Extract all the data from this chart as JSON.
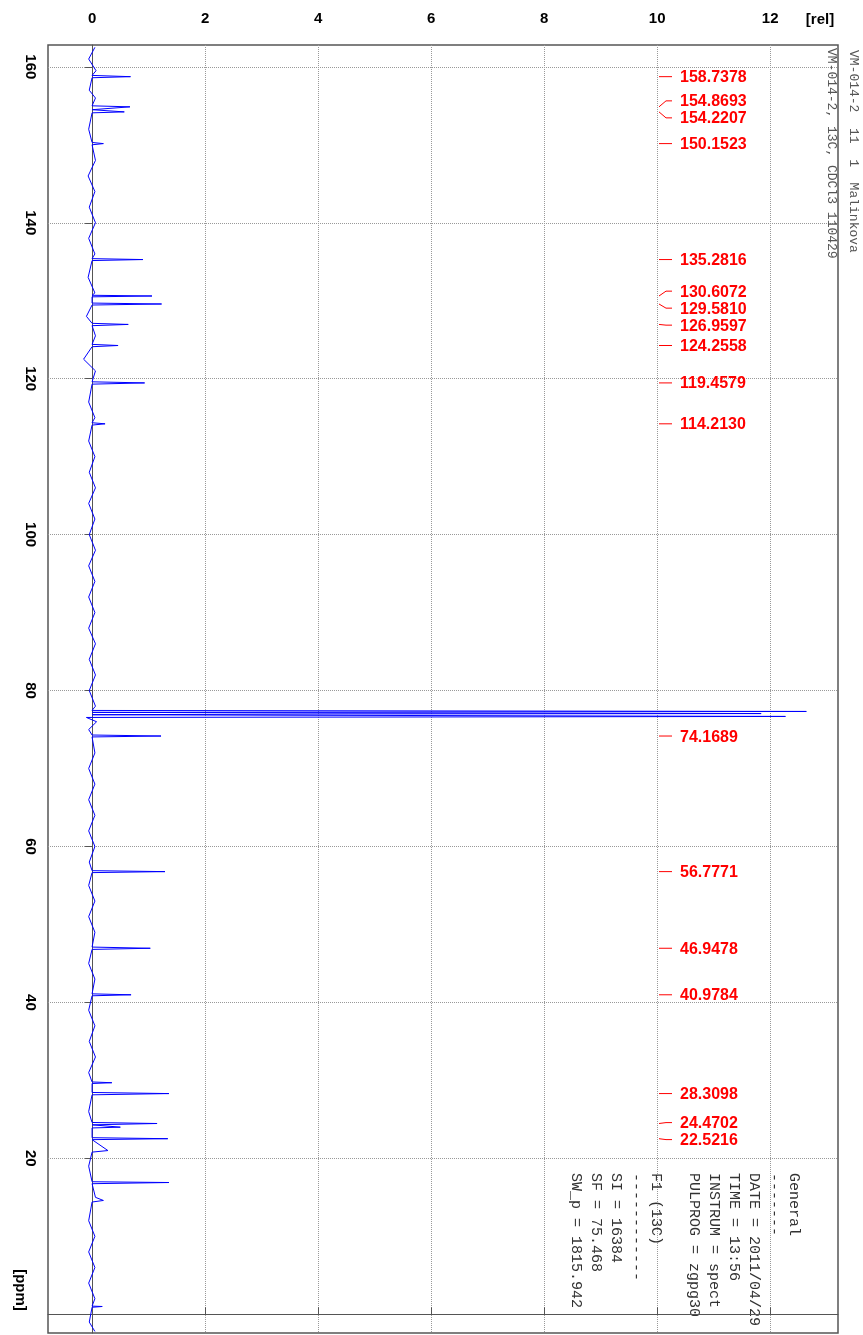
{
  "chart_data": {
    "type": "line",
    "title": "VM-014-2  11  1  Malinkova",
    "subtitle": "VM-014-2, 13C, CDCl3 110429",
    "xlabel": "[rel]",
    "ylabel": "[ppm]",
    "values": [
      162.5,
      161,
      159.5,
      158.9,
      158.7378,
      158.6,
      157,
      156,
      155.0,
      154.8693,
      154.5,
      154.2207,
      154.1,
      152,
      150.3,
      150.1523,
      150,
      148,
      146,
      144,
      142,
      140,
      138,
      136,
      135.4,
      135.2816,
      135.15,
      133,
      131,
      130.7,
      130.6072,
      130.5,
      129.7,
      129.581,
      129.45,
      128,
      127.1,
      126.9597,
      126.8,
      125.5,
      124.4,
      124.2558,
      124.1,
      122.5,
      121,
      119.6,
      119.4579,
      119.3,
      117,
      115,
      114.35,
      114.213,
      114.05,
      112,
      110,
      108,
      106,
      104,
      102,
      100,
      98,
      96,
      94,
      92,
      90,
      88,
      86,
      84,
      82,
      80,
      78,
      77.45,
      77.32,
      77.2,
      77.05,
      77.0,
      76.9,
      76.68,
      76.55,
      76,
      75,
      74.3,
      74.1689,
      74.05,
      72,
      70,
      68,
      66,
      64,
      62,
      60,
      58,
      56.9,
      56.7771,
      56.65,
      55,
      53,
      51,
      49,
      47.1,
      46.9478,
      46.8,
      45,
      43,
      41.1,
      40.9784,
      40.85,
      39,
      37,
      35,
      33,
      31,
      29.8,
      29.7,
      29.6,
      28.45,
      28.3098,
      28.15,
      26,
      24.6,
      24.4702,
      24.3,
      24.0,
      23.9,
      22.65,
      22.5216,
      22.4,
      21,
      20.8,
      19,
      17,
      16.9,
      16.75,
      15,
      14.6,
      14.4,
      12,
      10,
      8,
      6,
      4,
      2,
      1.05,
      1.0,
      0.9,
      -1,
      -2.2
    ],
    "x": [
      0.05,
      -0.06,
      0.07,
      0,
      0.68,
      0,
      -0.05,
      0.06,
      0,
      0.67,
      0,
      0.57,
      0,
      -0.06,
      0,
      0.2,
      0,
      0.06,
      -0.07,
      0.05,
      -0.05,
      0.06,
      -0.06,
      0.05,
      0,
      0.9,
      0,
      -0.07,
      0.05,
      0,
      1.06,
      0,
      0,
      1.23,
      0,
      -0.1,
      0,
      0.64,
      0,
      0.06,
      0,
      0.46,
      0,
      -0.15,
      0.06,
      0,
      0.93,
      0,
      -0.06,
      0.05,
      0,
      0.23,
      0,
      -0.06,
      0.05,
      -0.05,
      0.06,
      -0.06,
      0.05,
      -0.05,
      0.06,
      -0.06,
      0.05,
      -0.06,
      0.05,
      -0.06,
      0.06,
      -0.05,
      0.06,
      -0.05,
      0.06,
      0,
      12.64,
      0,
      11.84,
      4.53,
      0,
      12.27,
      -0.1,
      0.08,
      -0.06,
      0,
      1.22,
      0,
      0.05,
      -0.06,
      0.05,
      -0.06,
      0.05,
      -0.06,
      0.05,
      -0.05,
      0,
      1.29,
      0,
      -0.06,
      0.05,
      -0.06,
      0.05,
      0,
      1.03,
      0,
      -0.06,
      0.05,
      0,
      0.69,
      0,
      -0.06,
      0.05,
      -0.05,
      0.06,
      -0.06,
      0,
      0.35,
      0,
      0,
      1.36,
      0,
      -0.06,
      0,
      1.15,
      0,
      0.5,
      0,
      0,
      1.34,
      0,
      0.28,
      0,
      -0.06,
      0,
      1.36,
      0,
      0.06,
      0.2,
      0,
      -0.06,
      0.05,
      -0.06,
      0.05,
      -0.06,
      0.05,
      0,
      0.18,
      0,
      -0.05,
      0.05
    ],
    "color": "#0000ff",
    "marker": "none",
    "line_style": "solid",
    "xlim": [
      -0.78,
      13.2
    ],
    "xticks": [
      0,
      2,
      4,
      6,
      8,
      10,
      12
    ],
    "ylim": [
      -2.4,
      162.8
    ],
    "yticks": [
      {
        "value": 0,
        "label": null
      },
      20,
      40,
      60,
      80,
      100,
      120,
      140,
      160
    ],
    "grid": true,
    "annotations": [
      "158.7378",
      "154.8693",
      "154.2207",
      "150.1523",
      "135.2816",
      "130.6072",
      "129.5810",
      "126.9597",
      "124.2558",
      "119.4579",
      "114.2130",
      "74.1689",
      "56.7771",
      "46.9478",
      "40.9784",
      "28.3098",
      "24.4702",
      "22.5216",
      "General\n-------\nDATE = 2011/04/29\nTIME = 13:56\nINSTRUM = spect\nPULPROG = zgpg30",
      "F1 (13C)\n------------\nSI = 16384\nSF = 75.468\nSW_p = 1815.942"
    ]
  }
}
